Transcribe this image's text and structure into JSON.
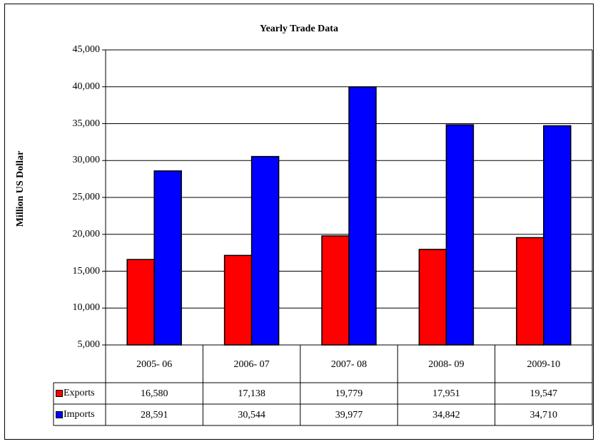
{
  "chart_data": {
    "type": "bar",
    "title": "Yearly Trade Data",
    "ylabel": "Million US Dollar",
    "xlabel": "",
    "ylim": [
      5000,
      45000
    ],
    "yticks": [
      "5,000",
      "10,000",
      "15,000",
      "20,000",
      "25,000",
      "30,000",
      "35,000",
      "40,000",
      "45,000"
    ],
    "ytick_values": [
      5000,
      10000,
      15000,
      20000,
      25000,
      30000,
      35000,
      40000,
      45000
    ],
    "grid": true,
    "legend": "data-table",
    "categories": [
      "2005- 06",
      "2006- 07",
      "2007- 08",
      "2008- 09",
      "2009-10"
    ],
    "series": [
      {
        "name": "Exports",
        "color": "#ff0000",
        "values": [
          16580,
          17138,
          19779,
          17951,
          19547
        ],
        "labels": [
          "16,580",
          "17,138",
          "19,779",
          "17,951",
          "19,547"
        ]
      },
      {
        "name": "Imports",
        "color": "#0000ff",
        "values": [
          28591,
          30544,
          39977,
          34842,
          34710
        ],
        "labels": [
          "28,591",
          "30,544",
          "39,977",
          "34,842",
          "34,710"
        ]
      }
    ]
  }
}
